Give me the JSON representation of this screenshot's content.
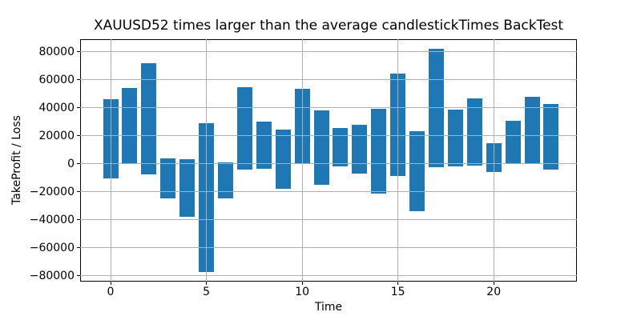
{
  "chart_data": {
    "type": "bar",
    "title": "XAUUSD52 times larger than the average candlestickTimes BackTest",
    "xlabel": "Time",
    "ylabel": "TakeProfit / Loss",
    "bar_style": "floating-range-bars",
    "bars": [
      {
        "x": 0,
        "low": -10500,
        "high": 46500
      },
      {
        "x": 1,
        "low": 500,
        "high": 54000
      },
      {
        "x": 2,
        "low": -7500,
        "high": 72000
      },
      {
        "x": 3,
        "low": -24500,
        "high": 4000
      },
      {
        "x": 4,
        "low": -38000,
        "high": 3500
      },
      {
        "x": 5,
        "low": -77000,
        "high": 29000
      },
      {
        "x": 6,
        "low": -24500,
        "high": 1000
      },
      {
        "x": 7,
        "low": -4000,
        "high": 55000
      },
      {
        "x": 8,
        "low": -3500,
        "high": 30500
      },
      {
        "x": 9,
        "low": -17500,
        "high": 24500
      },
      {
        "x": 10,
        "low": 500,
        "high": 53500
      },
      {
        "x": 11,
        "low": -15000,
        "high": 38000
      },
      {
        "x": 12,
        "low": -1500,
        "high": 25500
      },
      {
        "x": 13,
        "low": -7000,
        "high": 28000
      },
      {
        "x": 14,
        "low": -21000,
        "high": 39500
      },
      {
        "x": 15,
        "low": -8500,
        "high": 64500
      },
      {
        "x": 16,
        "low": -34000,
        "high": 23500
      },
      {
        "x": 17,
        "low": -2500,
        "high": 82500
      },
      {
        "x": 18,
        "low": -1500,
        "high": 39000
      },
      {
        "x": 19,
        "low": -1000,
        "high": 47000
      },
      {
        "x": 20,
        "low": -5500,
        "high": 15000
      },
      {
        "x": 21,
        "low": 500,
        "high": 31000
      },
      {
        "x": 22,
        "low": 500,
        "high": 48000
      },
      {
        "x": 23,
        "low": -4000,
        "high": 43000
      }
    ],
    "xticks": [
      0,
      5,
      10,
      15,
      20
    ],
    "xtick_labels": [
      "0",
      "5",
      "10",
      "15",
      "20"
    ],
    "yticks": [
      80000,
      60000,
      40000,
      20000,
      0,
      -20000,
      -40000,
      -60000,
      -80000
    ],
    "ytick_labels": [
      "80000",
      "60000",
      "40000",
      "20000",
      "0",
      "−20000",
      "−40000",
      "−60000",
      "−80000"
    ],
    "xlim": [
      -1.59,
      24.34
    ],
    "ylim": [
      -84000,
      89100
    ],
    "grid": true,
    "grid_over_bars": true,
    "bar_width_data_units": 0.8,
    "bar_color": "#1f77b4",
    "grid_color": "#b0b0b0",
    "axis_color": "#000000",
    "background_color": "#ffffff"
  }
}
